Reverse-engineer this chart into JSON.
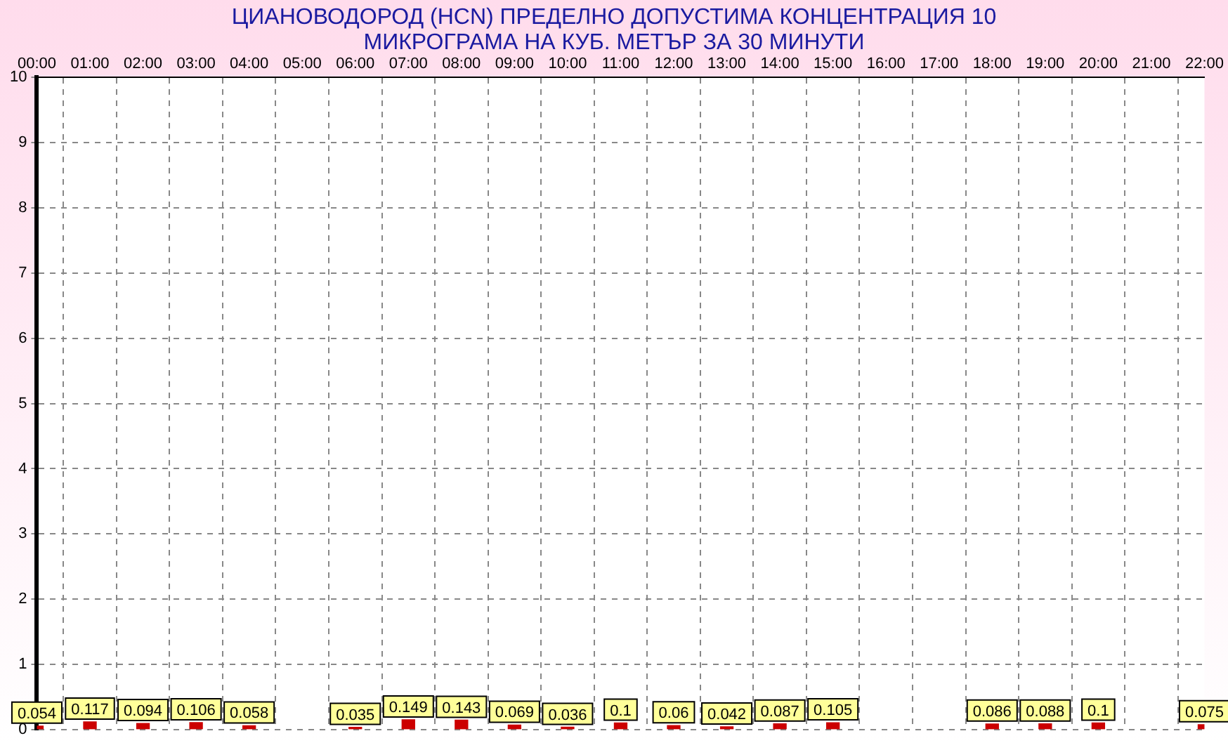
{
  "chart_data": {
    "type": "bar",
    "title": "ЦИАНОВОДОРОД (HCN) ПРЕДЕЛНО ДОПУСТИМА КОНЦЕНТРАЦИЯ 10 МИКРОГРАМА НА КУБ. МЕТЪР ЗА 30 МИНУТИ",
    "categories": [
      "00:00",
      "01:00",
      "02:00",
      "03:00",
      "04:00",
      "05:00",
      "06:00",
      "07:00",
      "08:00",
      "09:00",
      "10:00",
      "11:00",
      "12:00",
      "13:00",
      "14:00",
      "15:00",
      "16:00",
      "17:00",
      "18:00",
      "19:00",
      "20:00",
      "21:00",
      "22:00"
    ],
    "values": [
      0.054,
      0.117,
      0.094,
      0.106,
      0.058,
      null,
      0.035,
      0.149,
      0.143,
      0.069,
      0.036,
      0.1,
      0.06,
      0.042,
      0.087,
      0.105,
      null,
      null,
      0.086,
      0.088,
      0.1,
      null,
      0.075
    ],
    "color": "#cc0000",
    "ylim": [
      0,
      10
    ],
    "yticks": [
      0,
      1,
      2,
      3,
      4,
      5,
      6,
      7,
      8,
      9,
      10
    ],
    "grid": true,
    "data_labels": true
  }
}
